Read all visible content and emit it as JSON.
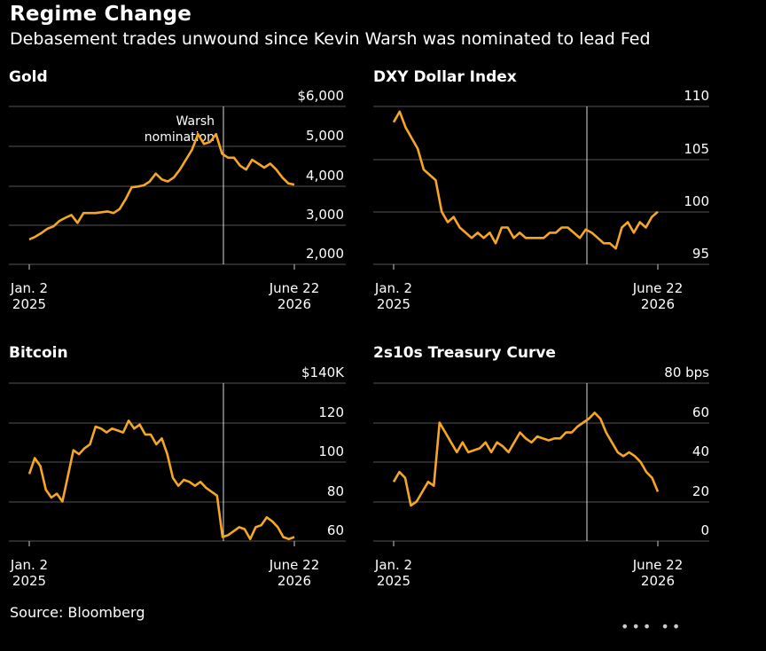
{
  "header": {
    "title": "Regime Change",
    "subtitle": "Debasement trades unwound since Kevin Warsh was nominated to lead Fed"
  },
  "source": "Source: Bloomberg",
  "watermark": "••• ••",
  "colors": {
    "line": "#f5a623",
    "grid": "#555555",
    "background": "#000000",
    "text": "#ffffff"
  },
  "chart_data": [
    {
      "type": "line",
      "title": "Gold",
      "x_tick_labels": [
        [
          "Jan. 2",
          "2025"
        ],
        [
          "June 22",
          "2026"
        ]
      ],
      "y_tick_labels": [
        "$6,000",
        "5,000",
        "4,000",
        "3,000",
        "2,000"
      ],
      "ylim": [
        2000,
        6000
      ],
      "annotation": [
        "Warsh",
        "nomination"
      ],
      "series": [
        {
          "values": [
            2630,
            2700,
            2790,
            2900,
            2960,
            3100,
            3180,
            3250,
            3050,
            3300,
            3300,
            3300,
            3320,
            3340,
            3300,
            3400,
            3650,
            3950,
            3970,
            4000,
            4100,
            4300,
            4150,
            4100,
            4200,
            4400,
            4650,
            4900,
            5300,
            5050,
            5100,
            5300,
            4800,
            4700,
            4700,
            4500,
            4400,
            4650,
            4550,
            4450,
            4550,
            4400,
            4200,
            4050,
            4020
          ]
        }
      ]
    },
    {
      "type": "line",
      "title": "DXY Dollar Index",
      "x_tick_labels": [
        [
          "Jan. 2",
          "2025"
        ],
        [
          "June 22",
          "2026"
        ]
      ],
      "y_tick_labels": [
        "110",
        "105",
        "100",
        "95"
      ],
      "ylim": [
        95,
        110
      ],
      "series": [
        {
          "values": [
            108.5,
            109.5,
            108,
            107,
            106,
            104,
            103.5,
            103,
            100,
            99,
            99.5,
            98.5,
            98,
            97.5,
            98,
            97.5,
            98,
            97,
            98.5,
            98.5,
            97.5,
            98,
            97.5,
            97.5,
            97.5,
            97.5,
            98,
            98,
            98.5,
            98.5,
            98,
            97.5,
            98.3,
            98,
            97.5,
            97,
            97,
            96.5,
            98.5,
            99,
            98,
            99,
            98.5,
            99.5,
            100
          ]
        }
      ]
    },
    {
      "type": "line",
      "title": "Bitcoin",
      "x_tick_labels": [
        [
          "Jan. 2",
          "2025"
        ],
        [
          "June 22",
          "2026"
        ]
      ],
      "y_tick_labels": [
        "$140K",
        "120",
        "100",
        "80",
        "60"
      ],
      "ylim": [
        60,
        140
      ],
      "series": [
        {
          "values": [
            94,
            102,
            98,
            86,
            82,
            84,
            80,
            93,
            106,
            104,
            107,
            109,
            118,
            117,
            115,
            117,
            116,
            115,
            121,
            117,
            119,
            114,
            114,
            109,
            112,
            104,
            92,
            88,
            91,
            90,
            88,
            90,
            87,
            85,
            83,
            62,
            63,
            65,
            67,
            66,
            61,
            67,
            68,
            72,
            70,
            67,
            62,
            61,
            62
          ]
        }
      ]
    },
    {
      "type": "line",
      "title": "2s10s Treasury Curve",
      "x_tick_labels": [
        [
          "Jan. 2",
          "2025"
        ],
        [
          "June 22",
          "2026"
        ]
      ],
      "y_tick_labels": [
        "80 bps",
        "60",
        "40",
        "20",
        "0"
      ],
      "ylim": [
        0,
        80
      ],
      "series": [
        {
          "values": [
            30,
            35,
            32,
            18,
            20,
            25,
            30,
            28,
            60,
            55,
            50,
            45,
            50,
            45,
            46,
            47,
            50,
            45,
            50,
            48,
            45,
            50,
            55,
            52,
            50,
            53,
            52,
            51,
            52,
            52,
            55,
            55,
            58,
            60,
            62,
            65,
            62,
            55,
            50,
            45,
            43,
            45,
            43,
            40,
            35,
            32,
            25
          ]
        }
      ]
    }
  ]
}
